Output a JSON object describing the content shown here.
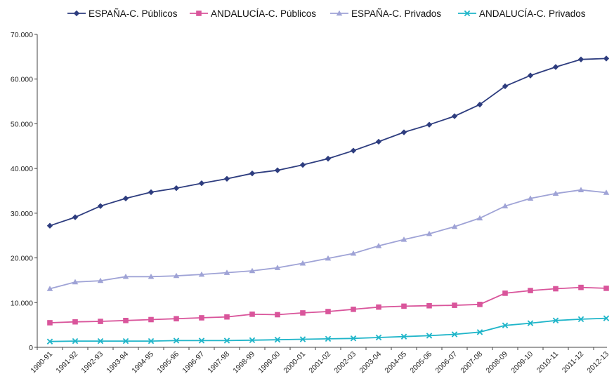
{
  "chart_data": {
    "type": "line",
    "title": "",
    "xlabel": "",
    "ylabel": "",
    "ylim": [
      0,
      70000
    ],
    "y_ticks": [
      "0",
      "10.000",
      "20.000",
      "30.000",
      "40.000",
      "50.000",
      "60.000",
      "70.000"
    ],
    "y_tick_values": [
      0,
      10000,
      20000,
      30000,
      40000,
      50000,
      60000,
      70000
    ],
    "grid": false,
    "legend_position": "top",
    "categories": [
      "1990-91",
      "1991-92",
      "1992-93",
      "1993-94",
      "1994-95",
      "1995-96",
      "1996-97",
      "1997-98",
      "1998-99",
      "1999-00",
      "2000-01",
      "2001-02",
      "2002-03",
      "2003-04",
      "2004-05",
      "2005-06",
      "2006-07",
      "2007-08",
      "2008-09",
      "2009-10",
      "2010-11",
      "2011-12",
      "2012-13"
    ],
    "series": [
      {
        "name": "ESPAÑA-C. Públicos",
        "color": "#2e3d7f",
        "marker": "diamond",
        "values": [
          27200,
          29100,
          31600,
          33300,
          34700,
          35600,
          36700,
          37700,
          38900,
          39600,
          40800,
          42200,
          44000,
          46000,
          48100,
          49800,
          51700,
          54300,
          58400,
          60800,
          62700,
          64400,
          64600
        ]
      },
      {
        "name": "ANDALUCÍA-C. Públicos",
        "color": "#d9559b",
        "marker": "square",
        "values": [
          5500,
          5700,
          5800,
          6000,
          6200,
          6400,
          6600,
          6800,
          7400,
          7300,
          7700,
          8000,
          8500,
          9000,
          9200,
          9300,
          9400,
          9600,
          12100,
          12700,
          13100,
          13400,
          13200
        ]
      },
      {
        "name": "ESPAÑA-C. Privados",
        "color": "#9fa3d6",
        "marker": "triangle",
        "values": [
          13100,
          14600,
          14900,
          15800,
          15800,
          16000,
          16300,
          16700,
          17100,
          17800,
          18800,
          19900,
          21000,
          22700,
          24100,
          25400,
          27000,
          28900,
          31600,
          33300,
          34400,
          35200,
          34600
        ]
      },
      {
        "name": "ANDALUCÍA-C. Privados",
        "color": "#1fb5c9",
        "marker": "x",
        "values": [
          1300,
          1400,
          1400,
          1400,
          1400,
          1500,
          1500,
          1500,
          1600,
          1700,
          1800,
          1900,
          2000,
          2200,
          2400,
          2600,
          2900,
          3400,
          4900,
          5400,
          6000,
          6300,
          6500
        ]
      }
    ]
  }
}
